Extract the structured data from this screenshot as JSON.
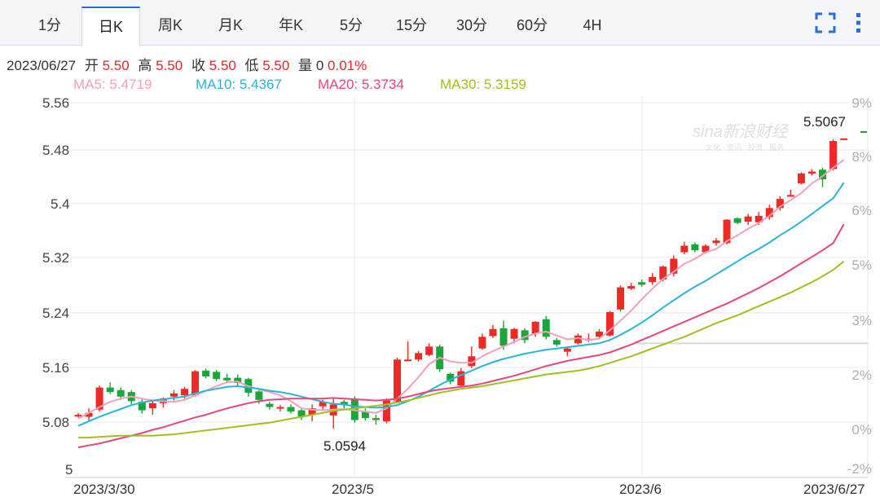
{
  "tabs": [
    {
      "label": "1分"
    },
    {
      "label": "日K"
    },
    {
      "label": "周K"
    },
    {
      "label": "月K"
    },
    {
      "label": "年K"
    },
    {
      "label": "5分"
    },
    {
      "label": "15分"
    },
    {
      "label": "30分"
    },
    {
      "label": "60分"
    },
    {
      "label": "4H"
    }
  ],
  "active_tab": "日K",
  "toolbar": {
    "fullscreen_icon": "fullscreen-icon",
    "menu_icon": "more-vertical-icon"
  },
  "info": {
    "date": "2023/06/27",
    "open_label": "开",
    "open": "5.50",
    "high_label": "高",
    "high": "5.50",
    "close_label": "收",
    "close": "5.50",
    "low_label": "低",
    "low": "5.50",
    "vol_label": "量",
    "vol": "0",
    "change": "0.01%"
  },
  "ma_legend": [
    {
      "label": "MA5: 5.4719",
      "color": "#f4a0b8"
    },
    {
      "label": "MA10: 5.4367",
      "color": "#27b5d8"
    },
    {
      "label": "MA20: 5.3734",
      "color": "#e8457a"
    },
    {
      "label": "MA30: 5.3159",
      "color": "#9ec21d"
    }
  ],
  "watermark": {
    "logo": "sina新浪财经",
    "sub": "文化 · 资讯 · 投资 · 服务"
  },
  "colors": {
    "up": "#ee2a24",
    "down": "#1aa63a",
    "grid": "#e6e9ee"
  },
  "chart_data": {
    "type": "candlestick",
    "x_labels": [
      "2023/3/30",
      "2023/5",
      "2023/6",
      "2023/6/27"
    ],
    "y_ticks": [
      "5.56",
      "5.48",
      "5.4",
      "5.32",
      "5.24",
      "5.16",
      "5.08",
      "5"
    ],
    "y_range": [
      5.0,
      5.57
    ],
    "pct_ticks": [
      "9%",
      "8%",
      "6%",
      "5%",
      "3%",
      "2%",
      "0%",
      "-2%"
    ],
    "max_label": "5.5067",
    "min_label": "5.0594",
    "reference_close": 5.19,
    "candles": [
      [
        5.08,
        5.08,
        5.083,
        5.076
      ],
      [
        5.077,
        5.083,
        5.09,
        5.071
      ],
      [
        5.088,
        5.122,
        5.125,
        5.085
      ],
      [
        5.122,
        5.115,
        5.13,
        5.112
      ],
      [
        5.118,
        5.108,
        5.122,
        5.103
      ],
      [
        5.115,
        5.101,
        5.118,
        5.096
      ],
      [
        5.1,
        5.087,
        5.104,
        5.082
      ],
      [
        5.09,
        5.098,
        5.102,
        5.08
      ],
      [
        5.098,
        5.105,
        5.107,
        5.091
      ],
      [
        5.108,
        5.113,
        5.118,
        5.102
      ],
      [
        5.11,
        5.12,
        5.123,
        5.105
      ],
      [
        5.11,
        5.147,
        5.149,
        5.108
      ],
      [
        5.148,
        5.139,
        5.151,
        5.136
      ],
      [
        5.146,
        5.135,
        5.149,
        5.132
      ],
      [
        5.137,
        5.133,
        5.143,
        5.131
      ],
      [
        5.137,
        5.129,
        5.142,
        5.124
      ],
      [
        5.135,
        5.114,
        5.137,
        5.108
      ],
      [
        5.116,
        5.103,
        5.118,
        5.097
      ],
      [
        5.097,
        5.092,
        5.1,
        5.088
      ],
      [
        5.09,
        5.092,
        5.095,
        5.085
      ],
      [
        5.092,
        5.085,
        5.096,
        5.082
      ],
      [
        5.087,
        5.077,
        5.089,
        5.072
      ],
      [
        5.08,
        5.09,
        5.096,
        5.07
      ],
      [
        5.093,
        5.1,
        5.103,
        5.088
      ],
      [
        5.079,
        5.096,
        5.105,
        5.059
      ],
      [
        5.1,
        5.095,
        5.103,
        5.09
      ],
      [
        5.104,
        5.072,
        5.108,
        5.068
      ],
      [
        5.085,
        5.075,
        5.09,
        5.071
      ],
      [
        5.075,
        5.072,
        5.08,
        5.065
      ],
      [
        5.07,
        5.102,
        5.105,
        5.067
      ],
      [
        5.1,
        5.165,
        5.168,
        5.098
      ],
      [
        5.165,
        5.165,
        5.193,
        5.163
      ],
      [
        5.165,
        5.175,
        5.178,
        5.162
      ],
      [
        5.172,
        5.185,
        5.19,
        5.17
      ],
      [
        5.185,
        5.15,
        5.188,
        5.146
      ],
      [
        5.143,
        5.131,
        5.145,
        5.127
      ],
      [
        5.125,
        5.147,
        5.152,
        5.122
      ],
      [
        5.155,
        5.17,
        5.185,
        5.152
      ],
      [
        5.182,
        5.2,
        5.205,
        5.18
      ],
      [
        5.201,
        5.212,
        5.218,
        5.198
      ],
      [
        5.213,
        5.186,
        5.225,
        5.18
      ],
      [
        5.197,
        5.212,
        5.214,
        5.19
      ],
      [
        5.21,
        5.195,
        5.213,
        5.19
      ],
      [
        5.205,
        5.223,
        5.224,
        5.2
      ],
      [
        5.227,
        5.2,
        5.232,
        5.196
      ],
      [
        5.195,
        5.188,
        5.198,
        5.185
      ],
      [
        5.177,
        5.182,
        5.185,
        5.17
      ],
      [
        5.19,
        5.202,
        5.205,
        5.188
      ],
      [
        5.197,
        5.197,
        5.205,
        5.192
      ],
      [
        5.2,
        5.208,
        5.212,
        5.196
      ],
      [
        5.202,
        5.238,
        5.24,
        5.2
      ],
      [
        5.242,
        5.276,
        5.279,
        5.239
      ],
      [
        5.274,
        5.278,
        5.283,
        5.272
      ],
      [
        5.284,
        5.28,
        5.288,
        5.277
      ],
      [
        5.284,
        5.292,
        5.298,
        5.28
      ],
      [
        5.288,
        5.308,
        5.31,
        5.285
      ],
      [
        5.297,
        5.32,
        5.325,
        5.293
      ],
      [
        5.33,
        5.34,
        5.346,
        5.327
      ],
      [
        5.342,
        5.333,
        5.345,
        5.33
      ],
      [
        5.33,
        5.34,
        5.342,
        5.328
      ],
      [
        5.344,
        5.348,
        5.352,
        5.34
      ],
      [
        5.344,
        5.38,
        5.381,
        5.342
      ],
      [
        5.382,
        5.375,
        5.384,
        5.373
      ],
      [
        5.377,
        5.385,
        5.389,
        5.372
      ],
      [
        5.376,
        5.386,
        5.392,
        5.372
      ],
      [
        5.384,
        5.398,
        5.403,
        5.38
      ],
      [
        5.398,
        5.412,
        5.416,
        5.394
      ],
      [
        5.418,
        5.418,
        5.426,
        5.416
      ],
      [
        5.436,
        5.451,
        5.453,
        5.434
      ],
      [
        5.451,
        5.454,
        5.458,
        5.448
      ],
      [
        5.457,
        5.442,
        5.46,
        5.43
      ],
      [
        5.458,
        5.501,
        5.504,
        5.456
      ],
      [
        5.505,
        5.505,
        5.505,
        5.505
      ]
    ],
    "ma": [
      {
        "name": "MA5",
        "values": [
          5.074,
          5.083,
          5.092,
          5.1,
          5.105,
          5.108,
          5.105,
          5.102,
          5.101,
          5.1,
          5.103,
          5.11,
          5.117,
          5.124,
          5.13,
          5.131,
          5.124,
          5.119,
          5.115,
          5.11,
          5.101,
          5.09,
          5.088,
          5.087,
          5.088,
          5.089,
          5.087,
          5.085,
          5.083,
          5.09,
          5.105,
          5.12,
          5.138,
          5.158,
          5.168,
          5.162,
          5.16,
          5.16,
          5.17,
          5.178,
          5.185,
          5.192,
          5.2,
          5.205,
          5.208,
          5.202,
          5.196,
          5.198,
          5.195,
          5.197,
          5.21,
          5.225,
          5.24,
          5.258,
          5.274,
          5.289,
          5.3,
          5.312,
          5.32,
          5.33,
          5.335,
          5.347,
          5.356,
          5.366,
          5.375,
          5.386,
          5.4,
          5.41,
          5.421,
          5.436,
          5.447,
          5.46,
          5.472
        ]
      },
      {
        "name": "MA10",
        "values": [
          5.063,
          5.07,
          5.077,
          5.083,
          5.089,
          5.095,
          5.099,
          5.102,
          5.104,
          5.106,
          5.108,
          5.113,
          5.117,
          5.12,
          5.123,
          5.124,
          5.122,
          5.12,
          5.117,
          5.115,
          5.112,
          5.108,
          5.104,
          5.1,
          5.097,
          5.096,
          5.093,
          5.092,
          5.091,
          5.092,
          5.095,
          5.101,
          5.108,
          5.117,
          5.126,
          5.134,
          5.141,
          5.148,
          5.155,
          5.161,
          5.166,
          5.17,
          5.174,
          5.177,
          5.18,
          5.182,
          5.184,
          5.186,
          5.188,
          5.19,
          5.195,
          5.203,
          5.212,
          5.222,
          5.233,
          5.245,
          5.256,
          5.267,
          5.277,
          5.286,
          5.296,
          5.306,
          5.316,
          5.326,
          5.335,
          5.345,
          5.356,
          5.366,
          5.377,
          5.389,
          5.401,
          5.413,
          5.437
        ]
      },
      {
        "name": "MA20",
        "values": [
          5.03,
          5.033,
          5.036,
          5.04,
          5.044,
          5.048,
          5.052,
          5.057,
          5.061,
          5.066,
          5.071,
          5.076,
          5.08,
          5.085,
          5.09,
          5.094,
          5.098,
          5.101,
          5.103,
          5.104,
          5.105,
          5.105,
          5.105,
          5.105,
          5.106,
          5.105,
          5.104,
          5.103,
          5.102,
          5.103,
          5.105,
          5.108,
          5.112,
          5.116,
          5.119,
          5.121,
          5.123,
          5.125,
          5.128,
          5.132,
          5.136,
          5.14,
          5.145,
          5.15,
          5.155,
          5.159,
          5.163,
          5.166,
          5.169,
          5.172,
          5.176,
          5.182,
          5.188,
          5.195,
          5.202,
          5.209,
          5.216,
          5.223,
          5.23,
          5.237,
          5.244,
          5.251,
          5.259,
          5.267,
          5.275,
          5.284,
          5.293,
          5.303,
          5.313,
          5.323,
          5.333,
          5.344,
          5.373
        ]
      },
      {
        "name": "MA30",
        "values": [
          5.045,
          5.045,
          5.046,
          5.047,
          5.048,
          5.048,
          5.048,
          5.048,
          5.049,
          5.05,
          5.052,
          5.054,
          5.056,
          5.058,
          5.06,
          5.062,
          5.064,
          5.066,
          5.068,
          5.071,
          5.074,
          5.077,
          5.08,
          5.083,
          5.086,
          5.088,
          5.09,
          5.092,
          5.094,
          5.096,
          5.099,
          5.102,
          5.106,
          5.11,
          5.114,
          5.117,
          5.12,
          5.122,
          5.124,
          5.127,
          5.13,
          5.133,
          5.136,
          5.139,
          5.142,
          5.144,
          5.146,
          5.148,
          5.151,
          5.155,
          5.16,
          5.165,
          5.17,
          5.176,
          5.182,
          5.188,
          5.194,
          5.2,
          5.207,
          5.214,
          5.221,
          5.227,
          5.233,
          5.24,
          5.247,
          5.254,
          5.261,
          5.268,
          5.276,
          5.284,
          5.293,
          5.303,
          5.316
        ]
      }
    ]
  }
}
